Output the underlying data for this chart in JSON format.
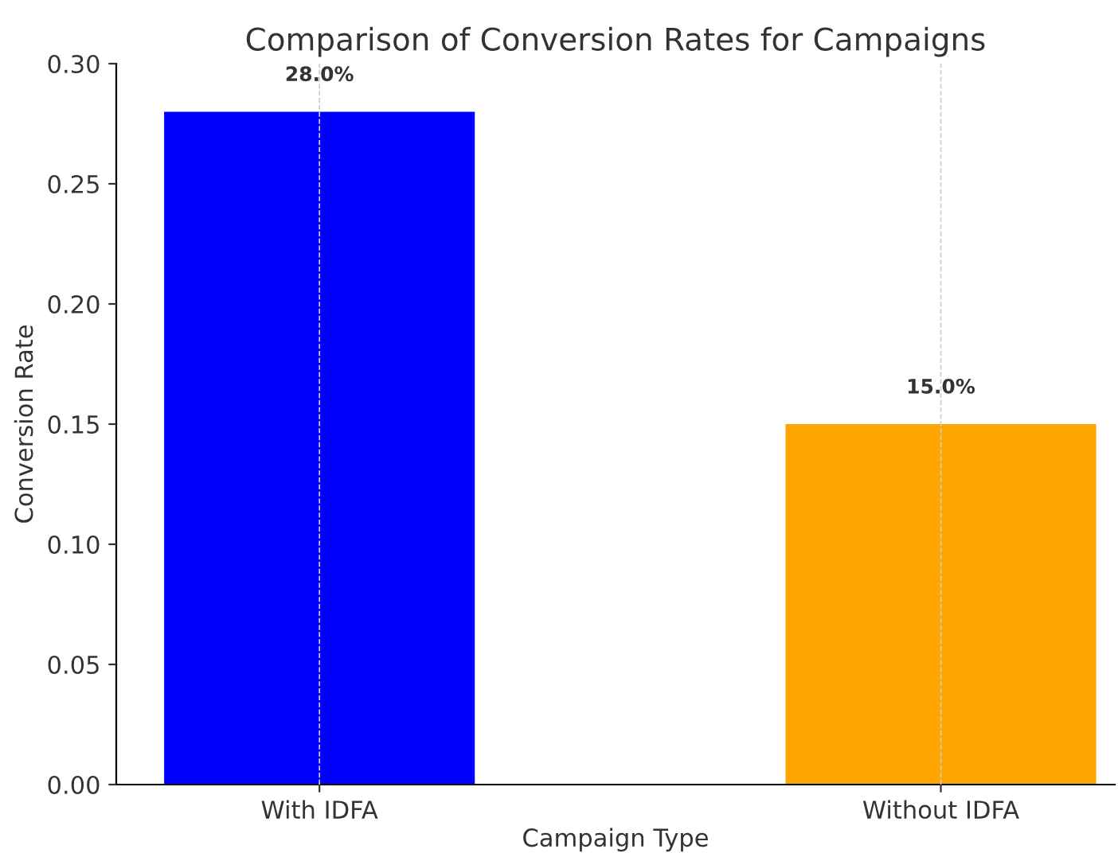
{
  "chart_data": {
    "type": "bar",
    "title": "Comparison of Conversion Rates for Campaigns",
    "xlabel": "Campaign Type",
    "ylabel": "Conversion Rate",
    "categories": [
      "With IDFA",
      "Without IDFA"
    ],
    "values": [
      0.28,
      0.15
    ],
    "colors": [
      "#0000ff",
      "#ffa500"
    ],
    "value_labels": [
      "28.0%",
      "15.0%"
    ],
    "ylim": [
      0,
      0.3
    ],
    "yticks": [
      {
        "value": 0,
        "label": "0.00"
      },
      {
        "value": 0.05,
        "label": "0.05"
      },
      {
        "value": 0.1,
        "label": "0.10"
      },
      {
        "value": 0.15,
        "label": "0.15"
      },
      {
        "value": 0.2,
        "label": "0.20"
      },
      {
        "value": 0.25,
        "label": "0.25"
      },
      {
        "value": 0.3,
        "label": "0.30"
      }
    ],
    "grid": "x"
  }
}
